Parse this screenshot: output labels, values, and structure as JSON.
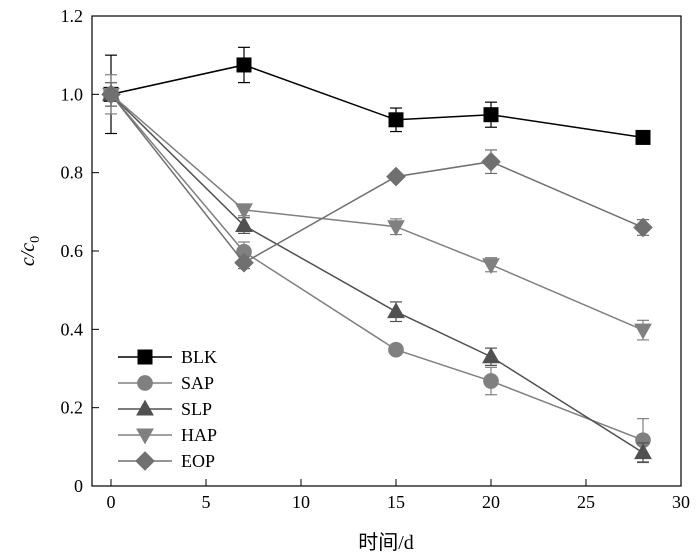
{
  "chart_data": {
    "type": "line",
    "xlabel": "时间/d",
    "ylabel": {
      "main": "c",
      "sep": "/c",
      "sub": "0"
    },
    "xlim": [
      -1,
      30
    ],
    "ylim": [
      0,
      1.2
    ],
    "xticks": [
      0,
      5,
      10,
      15,
      20,
      25,
      30
    ],
    "yticks": [
      0,
      0.2,
      0.4,
      0.6,
      0.8,
      1.0,
      1.2
    ],
    "xtick_labels": [
      "0",
      "5",
      "10",
      "15",
      "20",
      "25",
      "30"
    ],
    "ytick_labels": [
      "0",
      "0.2",
      "0.4",
      "0.6",
      "0.8",
      "1.0",
      "1.2"
    ],
    "legend_position": "bottom-left",
    "grid": false,
    "series": [
      {
        "name": "BLK",
        "marker": "square",
        "color": "#000000",
        "x": [
          0,
          7,
          15,
          20,
          28
        ],
        "y": [
          1.0,
          1.075,
          0.935,
          0.948,
          0.89
        ],
        "err": [
          0.1,
          0.045,
          0.03,
          0.032,
          0.0
        ]
      },
      {
        "name": "SAP",
        "marker": "circle",
        "color": "#808080",
        "x": [
          0,
          7,
          15,
          20,
          28
        ],
        "y": [
          1.0,
          0.598,
          0.348,
          0.268,
          0.117
        ],
        "err": [
          0.03,
          0.025,
          0.0,
          0.035,
          0.055
        ]
      },
      {
        "name": "SLP",
        "marker": "triangle-up",
        "color": "#505050",
        "x": [
          0,
          7,
          15,
          20,
          28
        ],
        "y": [
          1.0,
          0.665,
          0.445,
          0.33,
          0.085
        ],
        "err": [
          0.03,
          0.02,
          0.025,
          0.022,
          0.025
        ]
      },
      {
        "name": "HAP",
        "marker": "triangle-down",
        "color": "#808080",
        "x": [
          0,
          7,
          15,
          20,
          28
        ],
        "y": [
          1.0,
          0.705,
          0.662,
          0.565,
          0.398
        ],
        "err": [
          0.05,
          0.015,
          0.02,
          0.018,
          0.025
        ]
      },
      {
        "name": "EOP",
        "marker": "diamond",
        "color": "#707070",
        "x": [
          0,
          7,
          15,
          20,
          28
        ],
        "y": [
          1.0,
          0.57,
          0.79,
          0.828,
          0.66
        ],
        "err": [
          0.03,
          0.015,
          0.0,
          0.03,
          0.02
        ]
      }
    ]
  }
}
